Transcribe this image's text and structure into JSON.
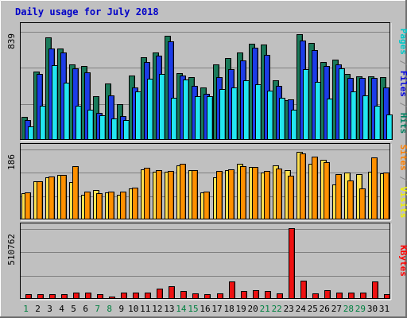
{
  "chart_data": {
    "title": "Daily usage for July 2018",
    "type": "bar",
    "categories": [
      "1",
      "2",
      "3",
      "4",
      "5",
      "6",
      "7",
      "8",
      "9",
      "10",
      "11",
      "12",
      "13",
      "14",
      "15",
      "16",
      "17",
      "18",
      "19",
      "20",
      "21",
      "22",
      "23",
      "24",
      "25",
      "26",
      "27",
      "28",
      "29",
      "30",
      "31"
    ],
    "weekend_days": [
      "1",
      "7",
      "8",
      "14",
      "15",
      "21",
      "22",
      "28",
      "29"
    ],
    "panels": [
      {
        "name": "hits-panel",
        "ymax": 839,
        "ymax_label": "839",
        "side_label": [
          "Pages",
          " / ",
          "Files",
          " / ",
          "Hits"
        ],
        "side_colors": [
          "#00c8c8",
          "#888888",
          "#0000e0",
          "#888888",
          "#008060"
        ],
        "series": [
          {
            "name": "Hits",
            "color": "#1a7a5a",
            "values": [
              175,
              525,
              790,
              700,
              580,
              565,
              330,
              430,
              270,
              495,
              635,
              672,
              798,
              510,
              480,
              400,
              580,
              630,
              670,
              738,
              734,
              455,
              305,
              815,
              744,
              598,
              615,
              508,
              484,
              484,
              480
            ]
          },
          {
            "name": "Files",
            "color": "#1c3ce8",
            "values": [
              150,
              505,
              700,
              670,
              550,
              520,
              205,
              340,
              180,
              400,
              600,
              648,
              758,
              490,
              415,
              350,
              480,
              540,
              610,
              708,
              656,
              410,
              310,
              764,
              692,
              569,
              582,
              473,
              477,
              472,
              400
            ]
          },
          {
            "name": "Pages",
            "color": "#22e6f0",
            "values": [
              100,
              256,
              573,
              436,
              260,
              225,
              185,
              163,
              145,
              372,
              467,
              504,
              320,
              463,
              330,
              331,
              387,
              400,
              455,
              426,
              375,
              321,
              231,
              540,
              442,
              317,
              550,
              368,
              340,
              260,
              190
            ]
          }
        ]
      },
      {
        "name": "visits-panel",
        "ymax": 186,
        "ymax_label": "186",
        "side_label": [
          "Sites",
          " / ",
          "Visits"
        ],
        "side_colors": [
          "#ff8000",
          "#888888",
          "#f0f000"
        ],
        "series": [
          {
            "name": "Visits",
            "color": "#ffe050",
            "values": [
              68,
              100,
              110,
              116,
              97,
              64,
              76,
              70,
              64,
              80,
              131,
              125,
              124,
              142,
              128,
              69,
              110,
              129,
              145,
              136,
              122,
              142,
              129,
              176,
              146,
              155,
              91,
              122,
              117,
              125,
              120
            ]
          },
          {
            "name": "Sites",
            "color": "#ff9000",
            "values": [
              70,
              100,
              112,
              115,
              138,
              72,
              68,
              71,
              71,
              82,
              134,
              128,
              126,
              146,
              129,
              71,
              127,
              131,
              140,
              136,
              126,
              132,
              113,
              172,
              164,
              150,
              117,
              102,
              81,
              162,
              122
            ]
          }
        ]
      },
      {
        "name": "kbytes-panel",
        "ymax": 510762,
        "ymax_label": "510762",
        "side_label": [
          "KBytes"
        ],
        "side_colors": [
          "#ff0000"
        ],
        "series": [
          {
            "name": "KBytes",
            "color": "#ee1111",
            "values": [
              28000,
              28000,
              28000,
              28000,
              40000,
              40000,
              28000,
              12000,
              40000,
              43000,
              40000,
              68000,
              86000,
              50000,
              33000,
              28000,
              33000,
              119000,
              50000,
              58000,
              50000,
              33000,
              510762,
              129000,
              33000,
              58000,
              40000,
              40000,
              40000,
              119000,
              28000
            ]
          }
        ]
      }
    ]
  }
}
